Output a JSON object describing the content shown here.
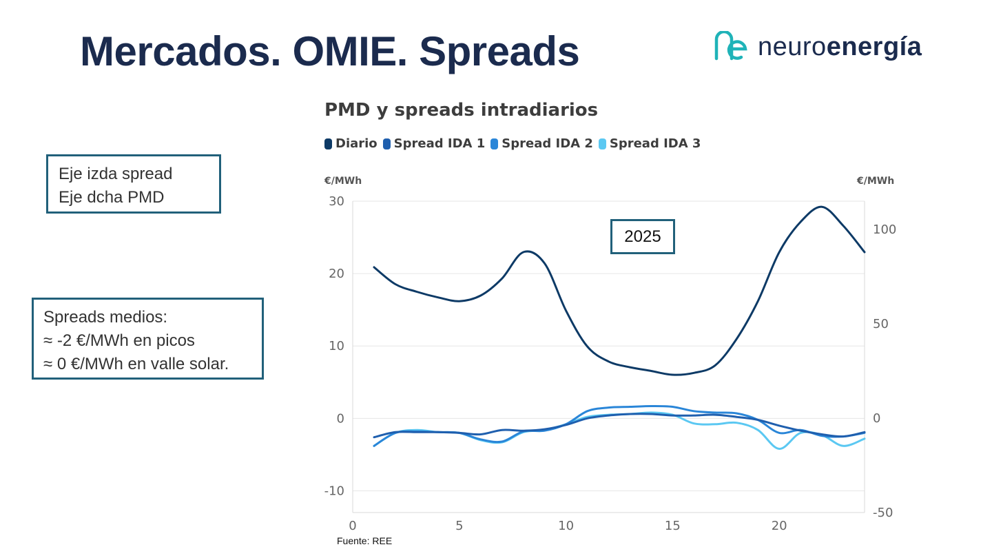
{
  "slide": {
    "title": "Mercados. OMIE. Spreads",
    "logo": {
      "text_light": "neuro",
      "text_bold": "energía",
      "icon": "ne-logo-icon"
    },
    "notes": [
      {
        "lines": [
          "Eje izda spread",
          "Eje dcha PMD"
        ]
      },
      {
        "lines": [
          "Spreads medios:",
          "≈ -2 €/MWh en picos",
          "≈ 0 €/MWh en valle solar."
        ]
      }
    ],
    "year_label": "2025",
    "source": "Fuente: REE"
  },
  "chart_data": {
    "type": "line",
    "title": "PMD y spreads intradiarios",
    "ylabel_left": "€/MWh",
    "ylabel_right": "€/MWh",
    "xlim": [
      0,
      24
    ],
    "ylim_left": [
      -13,
      30
    ],
    "ylim_right": [
      -50,
      115
    ],
    "x_ticks": [
      0,
      5,
      10,
      15,
      20
    ],
    "y_ticks_left": [
      -10,
      0,
      10,
      20,
      30
    ],
    "y_ticks_right": [
      -50,
      0,
      50,
      100
    ],
    "x": [
      1,
      2,
      3,
      4,
      5,
      6,
      7,
      8,
      9,
      10,
      11,
      12,
      13,
      14,
      15,
      16,
      17,
      18,
      19,
      20,
      21,
      22,
      23,
      24
    ],
    "series": [
      {
        "name": "Diario",
        "axis": "right",
        "color": "#0d3a66",
        "values": [
          80,
          71,
          67,
          64,
          62,
          65,
          74,
          88,
          82,
          57,
          38,
          30,
          27,
          25,
          23,
          24,
          28,
          42,
          62,
          88,
          104,
          112,
          102,
          88
        ]
      },
      {
        "name": "Spread IDA 1",
        "axis": "left",
        "color": "#1f5fae",
        "values": [
          -2.6,
          -1.9,
          -1.9,
          -1.9,
          -2.0,
          -2.2,
          -1.6,
          -1.7,
          -1.5,
          -0.9,
          0.0,
          0.4,
          0.6,
          0.6,
          0.4,
          0.4,
          0.5,
          0.2,
          -0.2,
          -1.0,
          -1.7,
          -2.2,
          -2.5,
          -1.9
        ]
      },
      {
        "name": "Spread IDA 2",
        "axis": "left",
        "color": "#2a86d8",
        "values": [
          -3.8,
          -2.0,
          -1.8,
          -1.9,
          -2.0,
          -2.9,
          -3.2,
          -1.8,
          -1.7,
          -0.8,
          1.0,
          1.5,
          1.6,
          1.7,
          1.6,
          1.0,
          0.8,
          0.7,
          -0.2,
          -2.0,
          -1.6,
          -2.4,
          -2.5,
          -2.0
        ]
      },
      {
        "name": "Spread IDA 3",
        "axis": "left",
        "color": "#5bc8f2",
        "values": [
          -3.8,
          -2.0,
          -1.6,
          -1.9,
          -2.0,
          -3.0,
          -3.3,
          -1.9,
          -1.6,
          -0.8,
          0.2,
          0.5,
          0.6,
          0.8,
          0.5,
          -0.7,
          -0.8,
          -0.6,
          -1.6,
          -4.2,
          -2.0,
          -2.3,
          -3.8,
          -2.8
        ]
      }
    ]
  }
}
